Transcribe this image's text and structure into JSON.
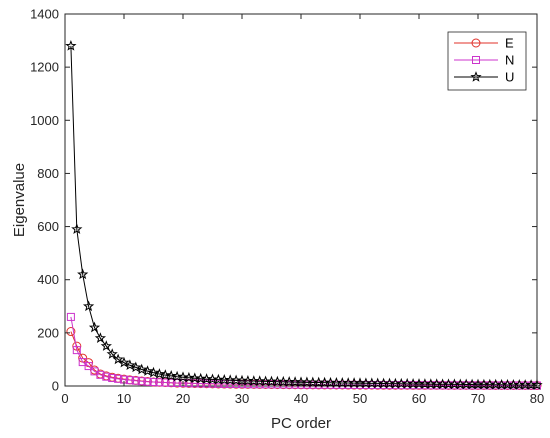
{
  "chart_data": {
    "type": "line",
    "xlabel": "PC order",
    "ylabel": "Eigenvalue",
    "xlim": [
      0,
      80
    ],
    "ylim": [
      0,
      1400
    ],
    "xticks": [
      0,
      10,
      20,
      30,
      40,
      50,
      60,
      70,
      80
    ],
    "yticks": [
      0,
      200,
      400,
      600,
      800,
      1000,
      1200,
      1400
    ],
    "grid": false,
    "legend_position": "top-right",
    "x": [
      1,
      2,
      3,
      4,
      5,
      6,
      7,
      8,
      9,
      10,
      11,
      12,
      13,
      14,
      15,
      16,
      17,
      18,
      19,
      20,
      21,
      22,
      23,
      24,
      25,
      26,
      27,
      28,
      29,
      30,
      31,
      32,
      33,
      34,
      35,
      36,
      37,
      38,
      39,
      40,
      41,
      42,
      43,
      44,
      45,
      46,
      47,
      48,
      49,
      50,
      51,
      52,
      53,
      54,
      55,
      56,
      57,
      58,
      59,
      60,
      61,
      62,
      63,
      64,
      65,
      66,
      67,
      68,
      69,
      70,
      71,
      72,
      73,
      74,
      75,
      76,
      77,
      78,
      79,
      80
    ],
    "series": [
      {
        "name": "E",
        "color": "#e0302a",
        "marker": "circle",
        "values": [
          205,
          150,
          105,
          88,
          60,
          45,
          38,
          33,
          29,
          26,
          23,
          21,
          19,
          17,
          15,
          14,
          13,
          12,
          11,
          10.5,
          10,
          9.5,
          9,
          8.5,
          8,
          7.7,
          7.4,
          7.1,
          6.8,
          6.5,
          6.3,
          6.1,
          5.9,
          5.7,
          5.5,
          5.3,
          5.1,
          4.9,
          4.7,
          4.5,
          4.4,
          4.3,
          4.2,
          4.1,
          4,
          3.9,
          3.8,
          3.7,
          3.6,
          3.5,
          3.4,
          3.3,
          3.2,
          3.1,
          3,
          3,
          2.9,
          2.9,
          2.8,
          2.8,
          2.7,
          2.7,
          2.6,
          2.6,
          2.5,
          2.5,
          2.4,
          2.4,
          2.3,
          2.3,
          2.2,
          2.2,
          2.1,
          2.1,
          2,
          2,
          1.9,
          1.9,
          1.8,
          1.8
        ]
      },
      {
        "name": "N",
        "color": "#cc33cc",
        "marker": "square",
        "values": [
          260,
          135,
          90,
          75,
          55,
          42,
          35,
          30,
          27,
          24,
          22,
          20,
          18,
          16,
          15,
          14,
          13,
          12,
          11.5,
          11,
          10.5,
          10,
          9.6,
          9.2,
          8.8,
          8.4,
          8,
          7.7,
          7.4,
          7.1,
          6.8,
          6.6,
          6.4,
          6.2,
          6,
          5.8,
          5.6,
          5.4,
          5.2,
          5,
          4.9,
          4.8,
          4.7,
          4.6,
          4.5,
          4.4,
          4.3,
          4.2,
          4.1,
          4,
          3.9,
          3.8,
          3.7,
          3.6,
          3.5,
          3.4,
          3.3,
          3.2,
          3.1,
          3,
          2.9,
          2.8,
          2.7,
          2.6,
          2.5,
          2.5,
          2.4,
          2.4,
          2.3,
          2.3,
          2.2,
          2.2,
          2.1,
          2.1,
          2,
          2,
          1.9,
          1.9,
          1.8,
          1.8
        ]
      },
      {
        "name": "U",
        "color": "#000000",
        "marker": "star",
        "values": [
          1280,
          590,
          420,
          300,
          220,
          180,
          150,
          120,
          100,
          88,
          78,
          70,
          62,
          56,
          50,
          45,
          41,
          38,
          35,
          33,
          31,
          29,
          27.5,
          26,
          25,
          24,
          23,
          22,
          21,
          20,
          19.3,
          18.6,
          18,
          17.4,
          16.8,
          16.2,
          15.7,
          15.2,
          14.7,
          14.2,
          13.8,
          13.4,
          13,
          12.6,
          12.2,
          11.8,
          11.5,
          11.2,
          10.9,
          10.6,
          10.3,
          10,
          9.7,
          9.4,
          9.1,
          8.8,
          8.5,
          8.2,
          7.9,
          7.6,
          7.3,
          7,
          6.8,
          6.6,
          6.4,
          6.2,
          6,
          5.8,
          5.6,
          5.4,
          5.2,
          5,
          4.8,
          4.6,
          4.4,
          4.2,
          4,
          3.8,
          3.6,
          3.4
        ]
      }
    ]
  }
}
